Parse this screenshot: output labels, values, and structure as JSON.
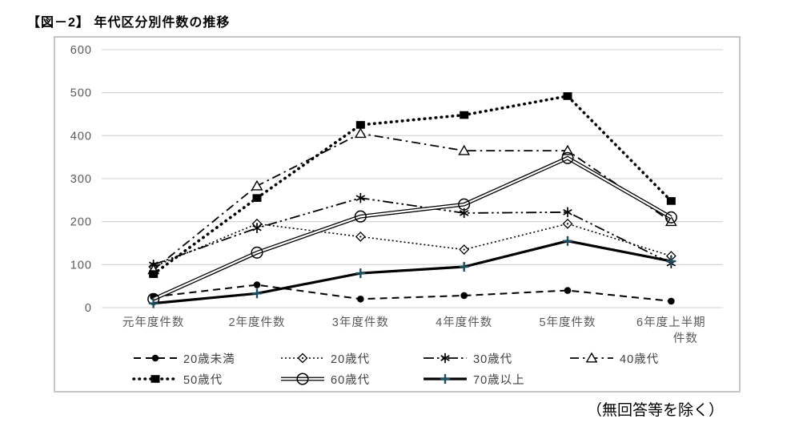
{
  "page": {
    "title": "【図－2】 年代区分別件数の推移",
    "caption": "（無回答等を除く）"
  },
  "colors": {
    "grid_line": "#d9d9d9",
    "axis_text": "#595959",
    "series_black": "#000000",
    "plus_marker_accent": "#1d4f63",
    "chart_border": "#c6c6c6",
    "background": "#ffffff"
  },
  "chart_data": {
    "type": "line",
    "title": "年代区分別件数の推移",
    "xlabel": "",
    "ylabel": "",
    "ylim": [
      0,
      600
    ],
    "yticks": [
      0,
      100,
      200,
      300,
      400,
      500,
      600
    ],
    "grid": true,
    "legend_position": "bottom",
    "categories": [
      "元年度件数",
      "2年度件数",
      "3年度件数",
      "4年度件数",
      "5年度件数",
      "6年度上半期\n件数"
    ],
    "series": [
      {
        "key": "under-20",
        "name": "20歳未満",
        "marker": "filled-circle",
        "line": "dashed",
        "values": [
          25,
          53,
          20,
          28,
          40,
          15
        ]
      },
      {
        "key": "20s",
        "name": "20歳代",
        "marker": "open-diamond",
        "line": "dotted",
        "values": [
          95,
          195,
          165,
          135,
          195,
          120
        ]
      },
      {
        "key": "30s",
        "name": "30歳代",
        "marker": "asterisk",
        "line": "dash-dot-dot",
        "values": [
          100,
          185,
          255,
          220,
          222,
          103
        ]
      },
      {
        "key": "40s",
        "name": "40歳代",
        "marker": "open-triangle",
        "line": "dash-dot",
        "values": [
          88,
          283,
          405,
          365,
          365,
          200
        ]
      },
      {
        "key": "50s",
        "name": "50歳代",
        "marker": "filled-square",
        "line": "bold-dotted",
        "values": [
          78,
          255,
          425,
          448,
          492,
          248
        ]
      },
      {
        "key": "60s",
        "name": "60歳代",
        "marker": "open-circle",
        "line": "double-solid",
        "values": [
          20,
          128,
          212,
          240,
          348,
          210
        ]
      },
      {
        "key": "70-plus",
        "name": "70歳以上",
        "marker": "plus",
        "line": "thick-solid",
        "values": [
          10,
          33,
          80,
          95,
          155,
          108
        ]
      }
    ]
  }
}
